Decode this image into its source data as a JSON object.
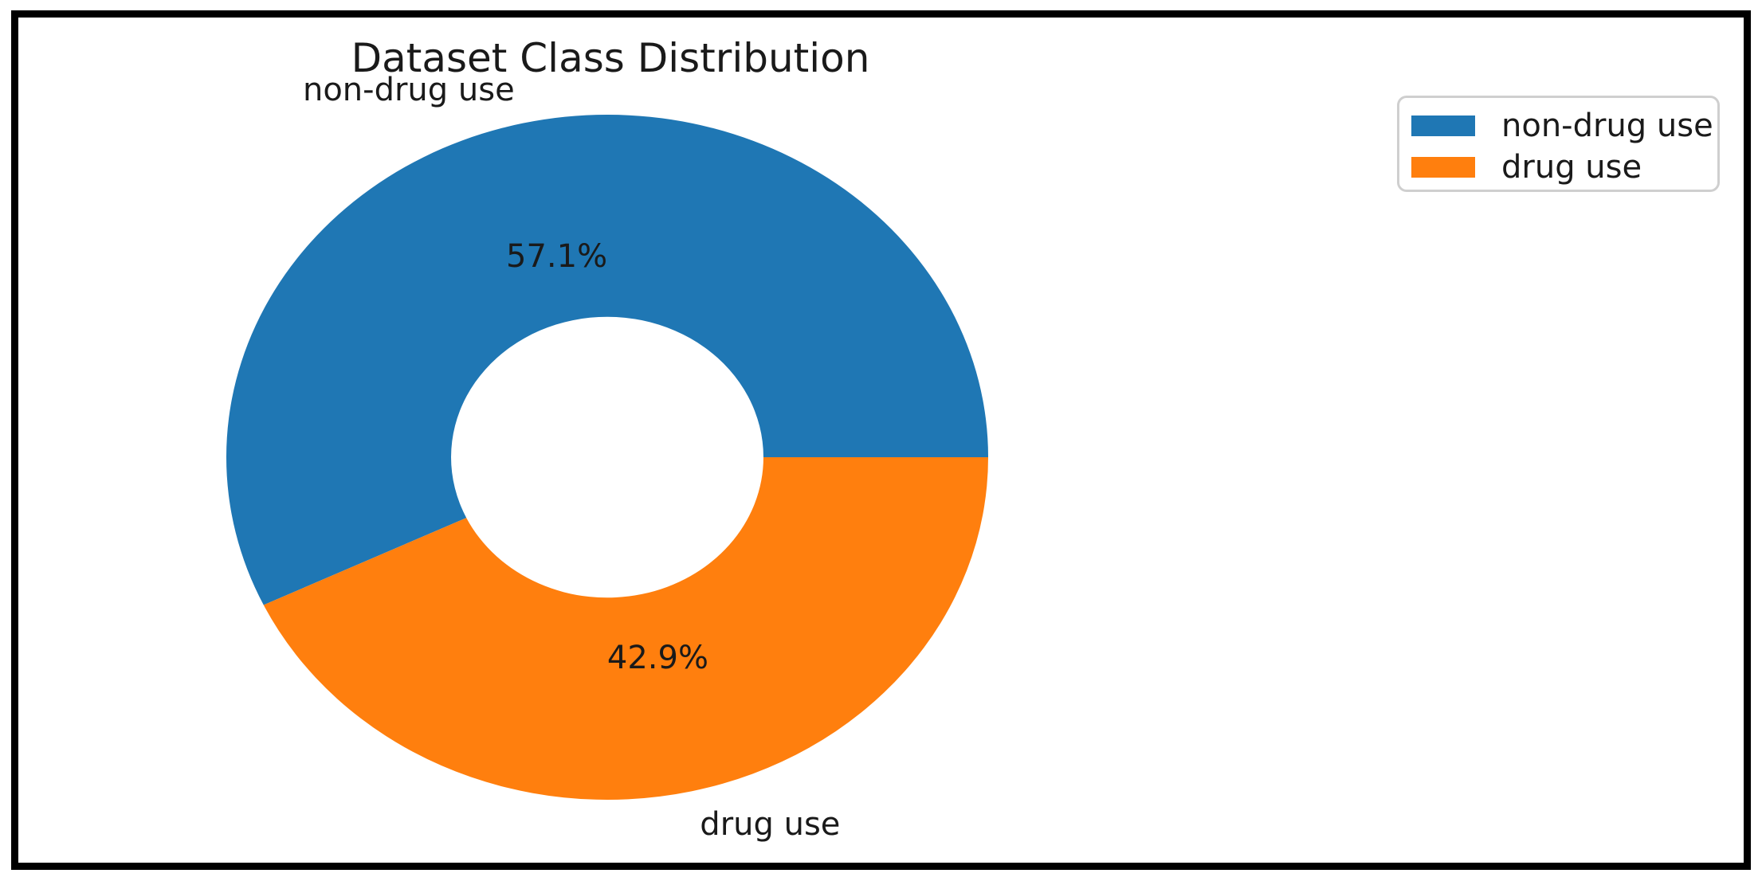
{
  "figure": {
    "background_color": "#ffffff",
    "border_color": "#000000"
  },
  "chart_data": {
    "type": "pie",
    "subtype": "donut",
    "title": "Dataset Class Distribution",
    "labels": [
      "non-drug use",
      "drug use"
    ],
    "values": [
      57.1,
      42.9
    ],
    "pct_labels": [
      "57.1%",
      "42.9%"
    ],
    "colors": [
      "#1f77b4",
      "#ff7f0e"
    ],
    "start_angle_deg": 0,
    "direction": "counterclockwise",
    "donut_hole_ratio": 0.41,
    "text_color": "#1a1a1a",
    "legend": {
      "position": "upper right",
      "entries": [
        {
          "label": "non-drug use",
          "color": "#1f77b4"
        },
        {
          "label": "drug use",
          "color": "#ff7f0e"
        }
      ]
    }
  }
}
